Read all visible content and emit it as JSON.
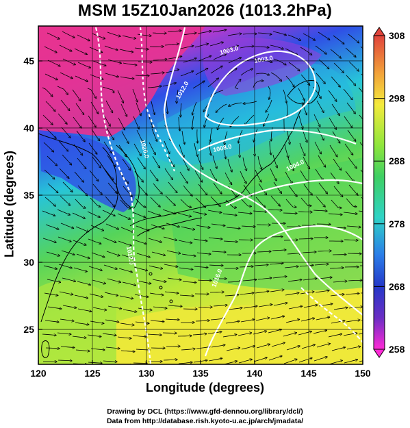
{
  "title": "MSM 15Z10Jan2026 (1013.2hPa)",
  "xlabel": "Longitude (degrees)",
  "ylabel": "Latitude  (degrees)",
  "credits": [
    "Drawing by DCL (https://www.gfd-dennou.org/library/dcl/)",
    "Data from http://database.rish.kyoto-u.ac.jp/arch/jmadata/"
  ],
  "map": {
    "lon_range": [
      120,
      150
    ],
    "lat_range": [
      22.4,
      47.6
    ],
    "lon_ticks": [
      "120",
      "125",
      "130",
      "135",
      "140",
      "145",
      "150"
    ],
    "lat_ticks": [
      "25",
      "30",
      "35",
      "40",
      "45"
    ],
    "grid_lines": true,
    "field_colors": [
      "#e8338f",
      "#6a31c8",
      "#2f4fe6",
      "#27c4d9",
      "#55d45a",
      "#b7e83a",
      "#eee93a"
    ]
  },
  "colorbar": {
    "min": 258,
    "max": 308,
    "ticks": [
      "308",
      "298",
      "288",
      "278",
      "268",
      "258"
    ],
    "colors": [
      "#e0443c",
      "#f2a23a",
      "#f4ea3c",
      "#8fe63c",
      "#3ecf63",
      "#2fd3c6",
      "#2b7de8",
      "#2438c8",
      "#6b2ec4",
      "#ff2bd6"
    ]
  },
  "isobars": [
    {
      "label": "1003.0"
    },
    {
      "label": "1003.0"
    },
    {
      "label": "1004.0"
    },
    {
      "label": "1008.0"
    },
    {
      "label": "1012.0"
    },
    {
      "label": "1012.0"
    },
    {
      "label": "1016.0"
    },
    {
      "label": "1020.0"
    }
  ]
}
